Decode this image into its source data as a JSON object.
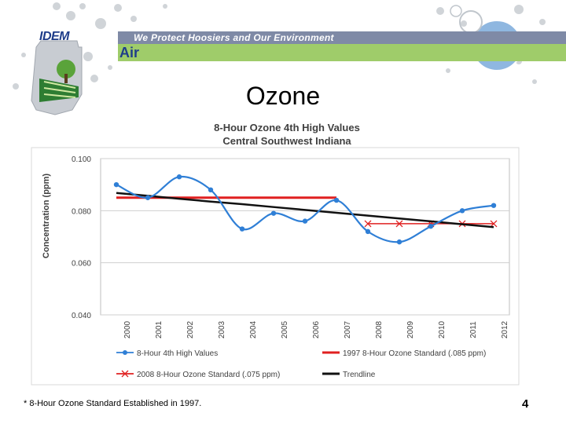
{
  "slide": {
    "banner_text": "We Protect Hoosiers and Our Environment",
    "logo_text": "IDEM",
    "section_text": "Air",
    "title": "Ozone",
    "footnote": "* 8-Hour Ozone Standard Established in 1997.",
    "page_number": "4"
  },
  "chart_data": {
    "type": "line",
    "title": "8-Hour Ozone 4th High Values",
    "subtitle": "Central Southwest Indiana",
    "xlabel": "",
    "ylabel": "Concentration (ppm)",
    "categories": [
      "2000",
      "2001",
      "2002",
      "2003",
      "2004",
      "2005",
      "2006",
      "2007",
      "2008",
      "2009",
      "2010",
      "2011",
      "2012"
    ],
    "ylim": [
      0.04,
      0.1
    ],
    "yticks": [
      "0.040",
      "0.060",
      "0.080",
      "0.100"
    ],
    "ytick_values": [
      0.04,
      0.06,
      0.08,
      0.1
    ],
    "grid": true,
    "legend_position": "bottom",
    "series": [
      {
        "name": "8-Hour 4th High Values",
        "color": "#2f7fd6",
        "values": [
          0.09,
          0.085,
          0.093,
          0.088,
          0.073,
          0.079,
          0.076,
          0.084,
          0.072,
          0.068,
          0.074,
          0.08,
          0.082
        ]
      },
      {
        "name": "1997 8-Hour Ozone Standard (.085 ppm)",
        "color": "#e02020",
        "values": [
          0.085,
          0.085,
          0.085,
          0.085,
          0.085,
          0.085,
          0.085,
          0.085,
          null,
          null,
          null,
          null,
          null
        ]
      },
      {
        "name": "2008 8-Hour Ozone Standard (.075 ppm)",
        "color": "#e02020",
        "values": [
          null,
          null,
          null,
          null,
          null,
          null,
          null,
          null,
          0.075,
          0.075,
          0.075,
          0.075,
          0.075
        ]
      },
      {
        "name": "Trendline",
        "color": "#111111",
        "values": [
          0.0868,
          0.0857,
          0.0846,
          0.0835,
          0.0825,
          0.0814,
          0.0803,
          0.0792,
          0.0781,
          0.077,
          0.0759,
          0.0748,
          0.0737
        ]
      }
    ]
  }
}
